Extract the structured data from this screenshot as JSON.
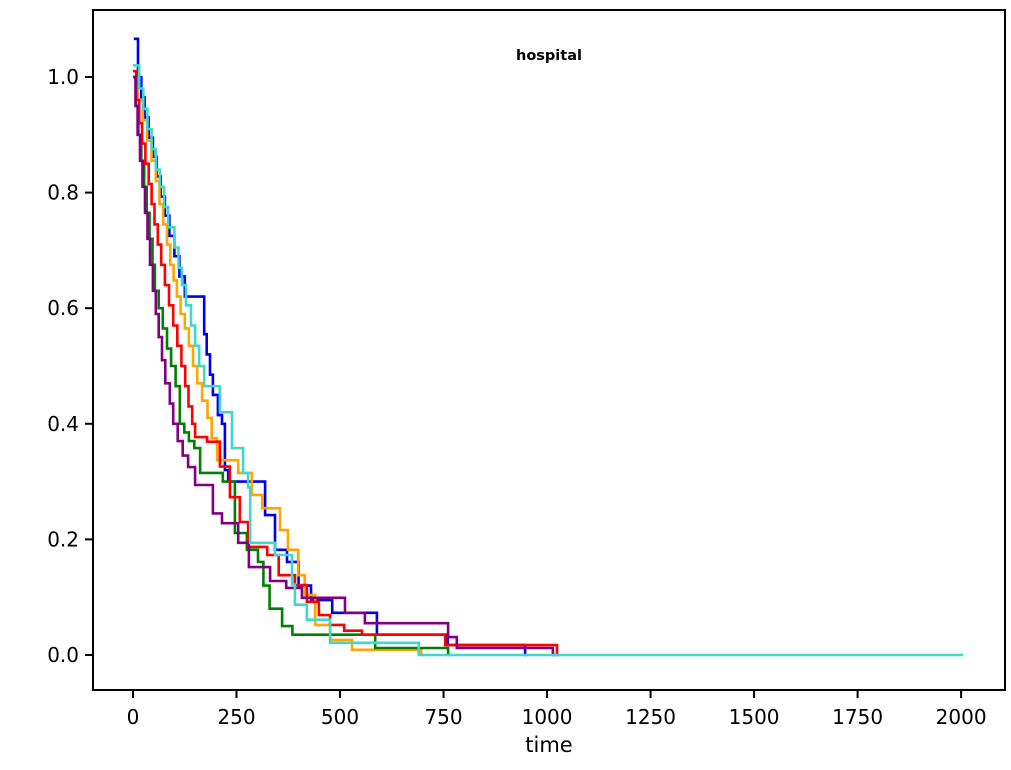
{
  "chart_data": {
    "type": "line",
    "subtype": "step-survival-curves",
    "title": "hospital",
    "xlabel": "time",
    "ylabel": "",
    "grid": false,
    "legend": "none",
    "xlim": [
      -96.6,
      2106
    ],
    "ylim": [
      -0.0606,
      1.1159
    ],
    "x_ticks": {
      "values": [
        0,
        250,
        500,
        750,
        1000,
        1250,
        1500,
        1750,
        2000
      ],
      "labels": [
        "0",
        "250",
        "500",
        "750",
        "1000",
        "1250",
        "1500",
        "1750",
        "2000"
      ]
    },
    "y_ticks": {
      "values": [
        0.0,
        0.2,
        0.4,
        0.6,
        0.8,
        1.0
      ],
      "labels": [
        "0.0",
        "0.2",
        "0.4",
        "0.6",
        "0.8",
        "1.0"
      ]
    },
    "colors": {
      "frame": "#000000",
      "blue": "#0000ee",
      "orange": "#ffa500",
      "green": "#008000",
      "red": "#ff0000",
      "purple": "#800080",
      "turquoise": "#40d8cc"
    },
    "series": [
      {
        "name": "curve-blue",
        "color": "#0000ee",
        "points": [
          [
            2,
            1.066
          ],
          [
            12,
            1.0
          ],
          [
            20,
            0.965
          ],
          [
            28,
            0.93
          ],
          [
            38,
            0.895
          ],
          [
            48,
            0.862
          ],
          [
            57,
            0.828
          ],
          [
            67,
            0.793
          ],
          [
            77,
            0.76
          ],
          [
            88,
            0.725
          ],
          [
            100,
            0.69
          ],
          [
            112,
            0.655
          ],
          [
            125,
            0.62
          ],
          [
            172,
            0.555
          ],
          [
            178,
            0.52
          ],
          [
            186,
            0.485
          ],
          [
            193,
            0.45
          ],
          [
            205,
            0.415
          ],
          [
            215,
            0.4
          ],
          [
            222,
            0.32
          ],
          [
            230,
            0.3
          ],
          [
            319,
            0.242
          ],
          [
            343,
            0.182
          ],
          [
            372,
            0.161
          ],
          [
            400,
            0.12
          ],
          [
            430,
            0.095
          ],
          [
            481,
            0.073
          ],
          [
            589,
            0.035
          ],
          [
            760,
            0.017
          ],
          [
            947,
            0.0
          ],
          [
            952,
            0.0
          ]
        ]
      },
      {
        "name": "curve-orange",
        "color": "#ffa500",
        "points": [
          [
            0,
            1.0
          ],
          [
            12,
            0.96
          ],
          [
            24,
            0.925
          ],
          [
            34,
            0.89
          ],
          [
            45,
            0.855
          ],
          [
            55,
            0.82
          ],
          [
            64,
            0.78
          ],
          [
            73,
            0.745
          ],
          [
            82,
            0.71
          ],
          [
            90,
            0.675
          ],
          [
            98,
            0.648
          ],
          [
            106,
            0.62
          ],
          [
            115,
            0.59
          ],
          [
            125,
            0.565
          ],
          [
            135,
            0.535
          ],
          [
            145,
            0.5
          ],
          [
            155,
            0.47
          ],
          [
            167,
            0.44
          ],
          [
            180,
            0.41
          ],
          [
            190,
            0.375
          ],
          [
            203,
            0.337
          ],
          [
            254,
            0.315
          ],
          [
            287,
            0.277
          ],
          [
            312,
            0.254
          ],
          [
            355,
            0.216
          ],
          [
            374,
            0.182
          ],
          [
            399,
            0.138
          ],
          [
            415,
            0.104
          ],
          [
            440,
            0.052
          ],
          [
            476,
            0.026
          ],
          [
            529,
            0.009
          ],
          [
            696,
            0.0
          ],
          [
            702,
            0.0
          ]
        ]
      },
      {
        "name": "curve-green",
        "color": "#008000",
        "points": [
          [
            0,
            1.0
          ],
          [
            7,
            0.95
          ],
          [
            13,
            0.9
          ],
          [
            20,
            0.855
          ],
          [
            27,
            0.81
          ],
          [
            33,
            0.765
          ],
          [
            40,
            0.72
          ],
          [
            47,
            0.675
          ],
          [
            53,
            0.63
          ],
          [
            62,
            0.6
          ],
          [
            72,
            0.565
          ],
          [
            82,
            0.53
          ],
          [
            92,
            0.5
          ],
          [
            103,
            0.465
          ],
          [
            113,
            0.4
          ],
          [
            124,
            0.385
          ],
          [
            135,
            0.37
          ],
          [
            148,
            0.358
          ],
          [
            162,
            0.315
          ],
          [
            217,
            0.3
          ],
          [
            246,
            0.211
          ],
          [
            275,
            0.182
          ],
          [
            302,
            0.161
          ],
          [
            315,
            0.12
          ],
          [
            330,
            0.08
          ],
          [
            360,
            0.05
          ],
          [
            385,
            0.035
          ],
          [
            585,
            0.012
          ],
          [
            761,
            0.0
          ],
          [
            766,
            0.0
          ]
        ]
      },
      {
        "name": "curve-red",
        "color": "#ff0000",
        "points": [
          [
            0,
            1.01
          ],
          [
            8,
            0.96
          ],
          [
            15,
            0.92
          ],
          [
            22,
            0.885
          ],
          [
            30,
            0.85
          ],
          [
            38,
            0.815
          ],
          [
            45,
            0.78
          ],
          [
            52,
            0.745
          ],
          [
            60,
            0.71
          ],
          [
            68,
            0.675
          ],
          [
            77,
            0.64
          ],
          [
            87,
            0.605
          ],
          [
            97,
            0.57
          ],
          [
            107,
            0.535
          ],
          [
            117,
            0.5
          ],
          [
            126,
            0.465
          ],
          [
            134,
            0.43
          ],
          [
            143,
            0.4
          ],
          [
            150,
            0.377
          ],
          [
            179,
            0.369
          ],
          [
            210,
            0.326
          ],
          [
            234,
            0.273
          ],
          [
            258,
            0.23
          ],
          [
            278,
            0.187
          ],
          [
            324,
            0.173
          ],
          [
            352,
            0.138
          ],
          [
            391,
            0.121
          ],
          [
            420,
            0.092
          ],
          [
            449,
            0.069
          ],
          [
            476,
            0.052
          ],
          [
            510,
            0.042
          ],
          [
            553,
            0.035
          ],
          [
            754,
            0.017
          ],
          [
            1024,
            0.0
          ],
          [
            1029,
            0.0
          ]
        ]
      },
      {
        "name": "curve-purple",
        "color": "#800080",
        "points": [
          [
            0,
            1.0
          ],
          [
            6,
            0.95
          ],
          [
            11,
            0.9
          ],
          [
            17,
            0.855
          ],
          [
            23,
            0.81
          ],
          [
            29,
            0.765
          ],
          [
            35,
            0.72
          ],
          [
            41,
            0.675
          ],
          [
            48,
            0.63
          ],
          [
            55,
            0.59
          ],
          [
            62,
            0.55
          ],
          [
            70,
            0.51
          ],
          [
            78,
            0.47
          ],
          [
            89,
            0.435
          ],
          [
            97,
            0.4
          ],
          [
            108,
            0.37
          ],
          [
            120,
            0.345
          ],
          [
            133,
            0.325
          ],
          [
            150,
            0.294
          ],
          [
            193,
            0.245
          ],
          [
            215,
            0.228
          ],
          [
            254,
            0.194
          ],
          [
            280,
            0.152
          ],
          [
            331,
            0.128
          ],
          [
            370,
            0.116
          ],
          [
            408,
            0.099
          ],
          [
            512,
            0.073
          ],
          [
            560,
            0.055
          ],
          [
            761,
            0.031
          ],
          [
            782,
            0.012
          ],
          [
            1014,
            0.0
          ],
          [
            1019,
            0.0
          ]
        ]
      },
      {
        "name": "curve-turquoise",
        "color": "#40d8cc",
        "points": [
          [
            0,
            1.02
          ],
          [
            15,
            0.98
          ],
          [
            25,
            0.945
          ],
          [
            35,
            0.91
          ],
          [
            45,
            0.875
          ],
          [
            55,
            0.84
          ],
          [
            65,
            0.81
          ],
          [
            75,
            0.775
          ],
          [
            85,
            0.74
          ],
          [
            100,
            0.705
          ],
          [
            110,
            0.67
          ],
          [
            118,
            0.64
          ],
          [
            128,
            0.605
          ],
          [
            140,
            0.57
          ],
          [
            150,
            0.535
          ],
          [
            160,
            0.5
          ],
          [
            172,
            0.465
          ],
          [
            210,
            0.42
          ],
          [
            239,
            0.358
          ],
          [
            266,
            0.315
          ],
          [
            278,
            0.29
          ],
          [
            283,
            0.194
          ],
          [
            343,
            0.173
          ],
          [
            384,
            0.122
          ],
          [
            391,
            0.087
          ],
          [
            420,
            0.061
          ],
          [
            476,
            0.021
          ],
          [
            690,
            0.0
          ],
          [
            2005,
            0.0
          ]
        ]
      }
    ]
  }
}
